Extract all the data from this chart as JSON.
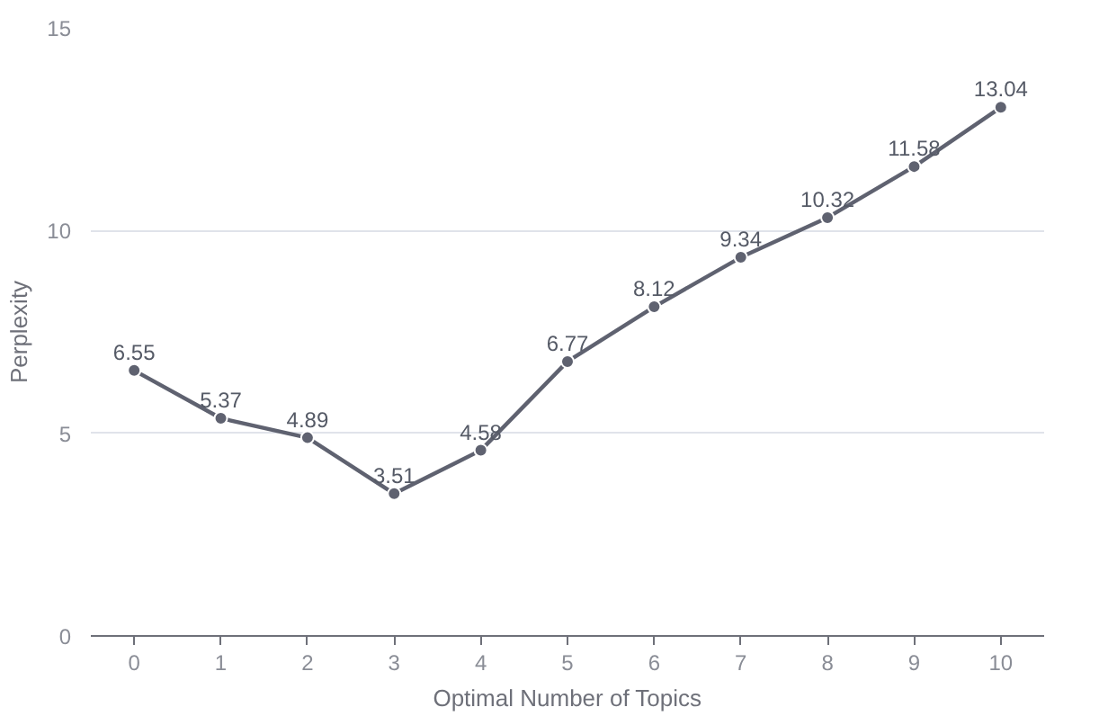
{
  "chart_data": {
    "type": "line",
    "xlabel": "Optimal Number of Topics",
    "ylabel": "Perplexity",
    "categories": [
      "0",
      "1",
      "2",
      "3",
      "4",
      "5",
      "6",
      "7",
      "8",
      "9",
      "10"
    ],
    "series": [
      {
        "color": "#5f6270",
        "values": [
          6.55,
          5.37,
          4.89,
          3.51,
          4.58,
          6.77,
          8.12,
          9.34,
          10.32,
          11.58,
          13.04
        ]
      }
    ],
    "ylim": [
      0,
      15
    ],
    "yticks": [
      0,
      5,
      10,
      15
    ],
    "grid": "y",
    "marker": "circle",
    "line_style": "solid",
    "data_labels": true
  }
}
